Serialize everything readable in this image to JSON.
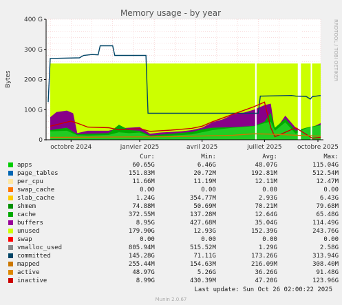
{
  "chart_data": {
    "type": "area",
    "title": "Memory usage - by year",
    "ylabel": "Bytes",
    "side_label": "RRDTOOL / TOBI OETIKER",
    "ylim": [
      0,
      400
    ],
    "yticks": [
      {
        "v": 0,
        "label": "0"
      },
      {
        "v": 100,
        "label": "100 G"
      },
      {
        "v": 200,
        "label": "200 G"
      },
      {
        "v": 300,
        "label": "300 G"
      },
      {
        "v": 400,
        "label": "400 G"
      }
    ],
    "xlim": [
      0,
      13.2
    ],
    "xticks": [
      {
        "v": 1.2,
        "label": "octobre 2024"
      },
      {
        "v": 4.5,
        "label": "janvier 2025"
      },
      {
        "v": 7.5,
        "label": "avril 2025"
      },
      {
        "v": 10.5,
        "label": "juillet 2025"
      },
      {
        "v": 13.5,
        "label": "octobre 2025"
      }
    ],
    "unit": "GB",
    "series": [
      {
        "name": "unused",
        "color": "#ccff00",
        "points": [
          [
            0.2,
            253
          ],
          [
            2.8,
            253
          ],
          [
            4.8,
            253
          ],
          [
            5,
            253
          ],
          [
            8,
            253
          ],
          [
            10,
            253
          ],
          [
            10.3,
            253
          ],
          [
            11.5,
            253
          ],
          [
            12,
            253
          ],
          [
            12.8,
            253
          ],
          [
            13.2,
            253
          ]
        ]
      },
      {
        "name": "buffers",
        "color": "#880088",
        "points": [
          [
            0.2,
            75
          ],
          [
            0.5,
            92
          ],
          [
            1,
            97
          ],
          [
            1.3,
            88
          ],
          [
            1.5,
            22
          ],
          [
            2,
            30
          ],
          [
            2.5,
            30
          ],
          [
            3,
            30
          ],
          [
            3.5,
            38
          ],
          [
            4,
            40
          ],
          [
            4.5,
            42
          ],
          [
            5,
            20
          ],
          [
            5.5,
            24
          ],
          [
            6,
            26
          ],
          [
            6.5,
            28
          ],
          [
            7,
            32
          ],
          [
            7.5,
            40
          ],
          [
            8,
            58
          ],
          [
            8.5,
            68
          ],
          [
            9,
            84
          ],
          [
            9.5,
            90
          ],
          [
            10,
            100
          ],
          [
            10.5,
            115
          ],
          [
            10.8,
            120
          ],
          [
            11,
            30
          ],
          [
            11.5,
            80
          ],
          [
            12,
            40
          ],
          [
            12.5,
            32
          ],
          [
            13.2,
            55
          ]
        ]
      },
      {
        "name": "cache",
        "color": "#00aa00",
        "points": [
          [
            0.2,
            32
          ],
          [
            1,
            40
          ],
          [
            1.5,
            18
          ],
          [
            2,
            20
          ],
          [
            3,
            22
          ],
          [
            3.5,
            50
          ],
          [
            4,
            32
          ],
          [
            4.5,
            30
          ],
          [
            5,
            14
          ],
          [
            6,
            20
          ],
          [
            7,
            26
          ],
          [
            7.5,
            35
          ],
          [
            8,
            40
          ],
          [
            9,
            42
          ],
          [
            10,
            46
          ],
          [
            10.5,
            60
          ],
          [
            10.8,
            90
          ],
          [
            11,
            40
          ],
          [
            11.5,
            70
          ],
          [
            12,
            30
          ],
          [
            12.5,
            40
          ],
          [
            13.2,
            50
          ]
        ]
      },
      {
        "name": "apps",
        "color": "#22cc22",
        "points": [
          [
            0.2,
            28
          ],
          [
            1,
            30
          ],
          [
            1.5,
            15
          ],
          [
            2,
            14
          ],
          [
            3,
            16
          ],
          [
            3.5,
            25
          ],
          [
            4,
            22
          ],
          [
            4.5,
            24
          ],
          [
            5,
            12
          ],
          [
            6,
            14
          ],
          [
            7,
            18
          ],
          [
            7.5,
            25
          ],
          [
            8,
            32
          ],
          [
            9,
            40
          ],
          [
            10,
            45
          ],
          [
            10.5,
            55
          ],
          [
            10.8,
            60
          ],
          [
            11,
            30
          ],
          [
            11.5,
            58
          ],
          [
            12,
            20
          ],
          [
            12.5,
            38
          ],
          [
            13.2,
            48
          ]
        ]
      },
      {
        "name": "committed",
        "color": "#004466",
        "line": true,
        "points": [
          [
            0.1,
            125
          ],
          [
            0.2,
            270
          ],
          [
            1.6,
            272
          ],
          [
            1.8,
            280
          ],
          [
            2.2,
            283
          ],
          [
            2.5,
            282
          ],
          [
            2.6,
            312
          ],
          [
            3.2,
            312
          ],
          [
            3.3,
            280
          ],
          [
            4.8,
            280
          ],
          [
            4.9,
            88
          ],
          [
            10.2,
            88
          ],
          [
            10.3,
            145
          ],
          [
            11.8,
            147
          ],
          [
            12,
            145
          ],
          [
            12.5,
            144
          ],
          [
            12.7,
            135
          ],
          [
            12.8,
            143
          ],
          [
            13.2,
            147
          ]
        ]
      },
      {
        "name": "inactive",
        "color": "#cc0000",
        "line": true,
        "points": [
          [
            0.2,
            45
          ],
          [
            1.2,
            62
          ],
          [
            1.5,
            55
          ],
          [
            2,
            42
          ],
          [
            3,
            40
          ],
          [
            3.5,
            33
          ],
          [
            4,
            35
          ],
          [
            4.5,
            37
          ],
          [
            5,
            28
          ],
          [
            6,
            32
          ],
          [
            7,
            38
          ],
          [
            7.5,
            45
          ],
          [
            8,
            60
          ],
          [
            9,
            85
          ],
          [
            10,
            110
          ],
          [
            10.5,
            125
          ],
          [
            10.8,
            40
          ],
          [
            11,
            10
          ],
          [
            11.5,
            25
          ],
          [
            12,
            40
          ],
          [
            12.8,
            5
          ],
          [
            13.2,
            8
          ]
        ]
      },
      {
        "name": "mapped",
        "color": "#cc7700",
        "line": true,
        "points": [
          [
            0.2,
            8
          ],
          [
            3,
            9
          ],
          [
            6,
            10
          ],
          [
            9,
            15
          ],
          [
            10,
            20
          ],
          [
            11,
            18
          ],
          [
            12,
            15
          ],
          [
            13.2,
            12
          ]
        ]
      }
    ]
  },
  "legend": {
    "headers": {
      "cur": "Cur:",
      "min": "Min:",
      "avg": "Avg:",
      "max": "Max:"
    },
    "rows": [
      {
        "name": "apps",
        "color": "#00cc00",
        "cur": "60.65G",
        "min": "6.46G",
        "avg": "48.07G",
        "max": "115.04G"
      },
      {
        "name": "page_tables",
        "color": "#0066b3",
        "cur": "151.83M",
        "min": "20.72M",
        "avg": "192.81M",
        "max": "512.54M"
      },
      {
        "name": "per_cpu",
        "color": "#ffe7a0",
        "cur": "11.66M",
        "min": "11.19M",
        "avg": "12.11M",
        "max": "12.47M"
      },
      {
        "name": "swap_cache",
        "color": "#ff7700",
        "cur": "0.00",
        "min": "0.00",
        "avg": "0.00",
        "max": "0.00"
      },
      {
        "name": "slab_cache",
        "color": "#ffcc00",
        "cur": "1.24G",
        "min": "354.77M",
        "avg": "2.93G",
        "max": "6.43G"
      },
      {
        "name": "shmem",
        "color": "#008f00",
        "cur": "74.88M",
        "min": "50.69M",
        "avg": "70.21M",
        "max": "79.68M"
      },
      {
        "name": "cache",
        "color": "#00aa00",
        "cur": "372.55M",
        "min": "137.28M",
        "avg": "12.64G",
        "max": "65.48G"
      },
      {
        "name": "buffers",
        "color": "#990099",
        "cur": "8.95G",
        "min": "427.68M",
        "avg": "35.04G",
        "max": "114.49G"
      },
      {
        "name": "unused",
        "color": "#ccff00",
        "cur": "179.90G",
        "min": "12.93G",
        "avg": "152.39G",
        "max": "243.76G"
      },
      {
        "name": "swap",
        "color": "#ff0000",
        "cur": "0.00",
        "min": "0.00",
        "avg": "0.00",
        "max": "0.00"
      },
      {
        "name": "vmalloc_used",
        "color": "#888888",
        "cur": "805.94M",
        "min": "515.52M",
        "avg": "1.29G",
        "max": "2.58G"
      },
      {
        "name": "committed",
        "color": "#004466",
        "cur": "145.28G",
        "min": "71.11G",
        "avg": "173.26G",
        "max": "313.94G"
      },
      {
        "name": "mapped",
        "color": "#cc7700",
        "cur": "255.44M",
        "min": "154.63M",
        "avg": "216.09M",
        "max": "308.40M"
      },
      {
        "name": "active",
        "color": "#dd8800",
        "cur": "48.97G",
        "min": "5.26G",
        "avg": "36.26G",
        "max": "91.48G"
      },
      {
        "name": "inactive",
        "color": "#cc0000",
        "cur": "8.99G",
        "min": "430.39M",
        "avg": "47.20G",
        "max": "123.96G"
      }
    ]
  },
  "footer": {
    "last_update": "Last update: Sun Oct 26 02:00:22 2025",
    "generator": "Munin 2.0.67"
  }
}
